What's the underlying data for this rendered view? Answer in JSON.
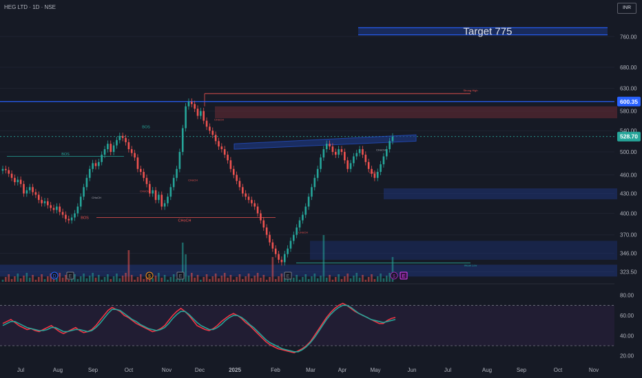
{
  "header": {
    "symbol": "HEG LTD · 1D · NSE",
    "currency": "INR"
  },
  "colors": {
    "bg": "#161a25",
    "up": "#26a69a",
    "down": "#ef5350",
    "blue": "#2962ff",
    "grid": "#1f2330"
  },
  "chart_data": [
    {
      "type": "candlestick",
      "ylabel_ticks": [
        "760.00",
        "680.00",
        "630.00",
        "580.00",
        "540.00",
        "500.00",
        "460.00",
        "430.00",
        "400.00",
        "370.00",
        "346.00",
        "323.50"
      ],
      "y_tick_values": [
        760,
        680,
        630,
        580,
        540,
        500,
        460,
        430,
        400,
        370,
        346,
        323.5
      ],
      "y_scale": "log",
      "ylim": [
        312,
        830
      ],
      "x_ticks": [
        "Jul",
        "Aug",
        "Sep",
        "Oct",
        "Nov",
        "Dec",
        "2025",
        "Feb",
        "Mar",
        "Apr",
        "May",
        "Jun",
        "Jul",
        "Aug",
        "Sep",
        "Oct",
        "Nov"
      ],
      "price_labels": [
        {
          "text": "600.35",
          "value": 600.35,
          "color": "#2962ff"
        },
        {
          "text": "528.70",
          "value": 528.7,
          "color": "#26a69a"
        }
      ],
      "annotation": "Target 775",
      "small_labels": [
        "BOS",
        "BOS",
        "BOS",
        "CHoCH",
        "CHoCH",
        "CHoCH",
        "CHoCH",
        "CHoCH",
        "CHoCH",
        "CHoCH",
        "CHoCH",
        "Strong High",
        "Weak Low"
      ],
      "event_markers": [
        "D",
        "E",
        "$",
        "E",
        "E",
        "$",
        "E"
      ],
      "closes": [
        470,
        468,
        462,
        455,
        448,
        452,
        445,
        430,
        435,
        440,
        432,
        428,
        420,
        415,
        418,
        412,
        408,
        405,
        410,
        402,
        398,
        392,
        390,
        394,
        400,
        410,
        425,
        440,
        455,
        470,
        480,
        475,
        482,
        495,
        505,
        515,
        500,
        512,
        522,
        530,
        526,
        518,
        505,
        498,
        490,
        470,
        465,
        455,
        445,
        430,
        435,
        420,
        428,
        410,
        415,
        425,
        440,
        455,
        470,
        500,
        545,
        590,
        600,
        595,
        585,
        570,
        580,
        560,
        548,
        540,
        532,
        520,
        510,
        505,
        495,
        485,
        470,
        460,
        450,
        440,
        430,
        425,
        420,
        415,
        410,
        400,
        390,
        380,
        370,
        360,
        352,
        345,
        338,
        335,
        345,
        352,
        362,
        370,
        380,
        390,
        398,
        410,
        425,
        440,
        455,
        470,
        490,
        505,
        515,
        510,
        500,
        495,
        505,
        500,
        485,
        470,
        480,
        492,
        498,
        505,
        495,
        482,
        470,
        462,
        455,
        465,
        478,
        492,
        505,
        520,
        528.7
      ]
    },
    {
      "type": "line",
      "title": "",
      "ylabel_ticks": [
        "80.00",
        "60.00",
        "40.00",
        "20.00"
      ],
      "y_tick_values": [
        80,
        60,
        40,
        20
      ],
      "ylim": [
        15,
        90
      ],
      "series": [
        {
          "color": "#f23645",
          "values": [
            52,
            54,
            56,
            53,
            50,
            48,
            46,
            47,
            45,
            44,
            46,
            48,
            50,
            47,
            44,
            42,
            44,
            46,
            48,
            45,
            43,
            44,
            46,
            50,
            55,
            60,
            65,
            68,
            66,
            64,
            60,
            58,
            55,
            52,
            50,
            48,
            46,
            44,
            45,
            47,
            50,
            55,
            60,
            64,
            67,
            64,
            60,
            55,
            50,
            48,
            46,
            45,
            47,
            50,
            54,
            57,
            60,
            62,
            60,
            57,
            53,
            50,
            46,
            42,
            38,
            34,
            31,
            29,
            27,
            26,
            25,
            24,
            23,
            25,
            27,
            30,
            34,
            40,
            46,
            52,
            58,
            63,
            67,
            70,
            72,
            70,
            67,
            64,
            62,
            60,
            58,
            56,
            54,
            52,
            52,
            55,
            57,
            58
          ]
        },
        {
          "color": "#26a69a",
          "values": [
            50,
            52,
            54,
            54,
            52,
            50,
            48,
            47,
            46,
            45,
            45,
            46,
            48,
            48,
            46,
            44,
            44,
            45,
            46,
            46,
            45,
            44,
            45,
            48,
            52,
            57,
            62,
            66,
            66,
            65,
            62,
            59,
            56,
            54,
            51,
            49,
            47,
            46,
            45,
            46,
            48,
            52,
            57,
            61,
            64,
            64,
            61,
            57,
            53,
            50,
            48,
            46,
            46,
            48,
            51,
            55,
            58,
            60,
            60,
            58,
            55,
            51,
            48,
            44,
            40,
            36,
            33,
            31,
            29,
            27,
            26,
            25,
            24,
            24,
            26,
            29,
            33,
            38,
            44,
            50,
            56,
            61,
            65,
            68,
            70,
            70,
            68,
            65,
            62,
            60,
            58,
            56,
            55,
            54,
            53,
            54,
            55,
            56
          ]
        }
      ],
      "bands": [
        30,
        70
      ]
    }
  ]
}
